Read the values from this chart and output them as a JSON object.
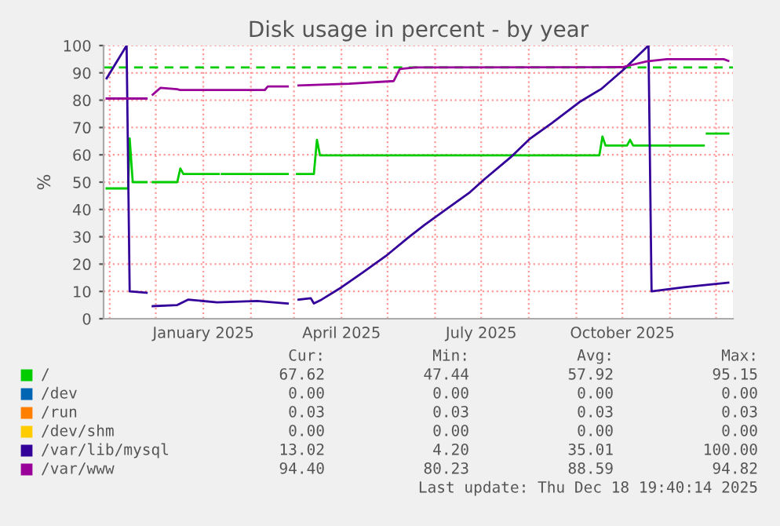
{
  "chart_data": {
    "type": "line",
    "title": "Disk usage in percent - by year",
    "ylabel": "%",
    "xlim": [
      "2024-10-28",
      "2025-12-12"
    ],
    "ylim": [
      0,
      100
    ],
    "yticks": [
      0,
      10,
      20,
      30,
      40,
      50,
      60,
      70,
      80,
      90,
      100
    ],
    "xticks": [
      {
        "value": "2024-11-01",
        "label": null
      },
      {
        "value": "2024-12-01",
        "label": null
      },
      {
        "value": "2025-01-01",
        "label": "January 2025"
      },
      {
        "value": "2025-02-01",
        "label": null
      },
      {
        "value": "2025-03-01",
        "label": null
      },
      {
        "value": "2025-04-01",
        "label": "April 2025"
      },
      {
        "value": "2025-05-01",
        "label": null
      },
      {
        "value": "2025-06-01",
        "label": null
      },
      {
        "value": "2025-07-01",
        "label": "July 2025"
      },
      {
        "value": "2025-08-01",
        "label": null
      },
      {
        "value": "2025-09-01",
        "label": null
      },
      {
        "value": "2025-10-01",
        "label": "October 2025"
      },
      {
        "value": "2025-11-01",
        "label": null
      },
      {
        "value": "2025-12-01",
        "label": null
      }
    ],
    "grid": true,
    "legend": "bottom",
    "marker": "none",
    "line_style": "solid",
    "ref_lines": [
      {
        "axis": "y",
        "value": 92,
        "label": null,
        "color": "#00cc00",
        "line_style": "dashed"
      }
    ],
    "series": [
      {
        "name": "/",
        "color": "#00cc00",
        "x": [
          "2024-10-30",
          "2024-11-13",
          "2024-11-14",
          "2024-11-16",
          "2024-11-25",
          "2024-11-27",
          "2024-11-29",
          "2024-12-15",
          "2024-12-17",
          "2024-12-19",
          "2025-01-11",
          "2025-01-12",
          "2025-01-13",
          "2025-02-25",
          "2025-02-28",
          "2025-03-03",
          "2025-03-14",
          "2025-03-16",
          "2025-03-18",
          "2025-09-16",
          "2025-09-18",
          "2025-09-20",
          "2025-10-04",
          "2025-10-06",
          "2025-10-08",
          "2025-11-23",
          "2025-11-24",
          "2025-11-25",
          "2025-12-09"
        ],
        "values": [
          47.7,
          47.7,
          66,
          50,
          50,
          null,
          50,
          50,
          55,
          53,
          53,
          null,
          53,
          53,
          null,
          53,
          53,
          65.5,
          59.8,
          59.8,
          66.7,
          63.4,
          63.4,
          65.5,
          63.4,
          63.4,
          null,
          67.8,
          67.8
        ]
      },
      {
        "name": "/dev",
        "color": "#0066b3"
      },
      {
        "name": "/run",
        "color": "#ff8000"
      },
      {
        "name": "/dev/shm",
        "color": "#ffcc00"
      },
      {
        "name": "/var/lib/mysql",
        "color": "#330099",
        "x": [
          "2024-10-30",
          "2024-11-12",
          "2024-11-14",
          "2024-11-25",
          "2024-11-27",
          "2024-11-29",
          "2024-12-15",
          "2024-12-22",
          "2025-01-10",
          "2025-02-05",
          "2025-02-25",
          "2025-02-28",
          "2025-03-04",
          "2025-03-12",
          "2025-03-14",
          "2025-03-19",
          "2025-04-01",
          "2025-04-15",
          "2025-04-30",
          "2025-05-14",
          "2025-05-25",
          "2025-06-08",
          "2025-06-23",
          "2025-07-03",
          "2025-07-20",
          "2025-08-02",
          "2025-08-16",
          "2025-09-03",
          "2025-09-17",
          "2025-10-01",
          "2025-10-18",
          "2025-10-20",
          "2025-11-10",
          "2025-12-09"
        ],
        "values": [
          88,
          100,
          10,
          9.5,
          null,
          4.6,
          5,
          7,
          6,
          6.5,
          5.6,
          null,
          7,
          7.5,
          5.6,
          7,
          11.5,
          17,
          23,
          29.5,
          34.3,
          40,
          46,
          51,
          59,
          66,
          71.6,
          79.3,
          84,
          90.8,
          100,
          10,
          11.5,
          13.2
        ]
      },
      {
        "name": "/var/www",
        "color": "#990099",
        "x": [
          "2024-10-30",
          "2024-11-25",
          "2024-11-27",
          "2024-11-29",
          "2024-12-04",
          "2024-12-15",
          "2024-12-17",
          "2025-02-10",
          "2025-02-12",
          "2025-02-25",
          "2025-02-28",
          "2025-03-04",
          "2025-04-06",
          "2025-05-05",
          "2025-05-09",
          "2025-05-19",
          "2025-10-01",
          "2025-10-17",
          "2025-10-30",
          "2025-12-06",
          "2025-12-09"
        ],
        "values": [
          80.6,
          80.6,
          null,
          82,
          84.5,
          84,
          83.7,
          83.7,
          85,
          85,
          null,
          85.4,
          86,
          87,
          91.4,
          92,
          92.1,
          94.2,
          95,
          95,
          94.4
        ]
      }
    ],
    "annotations": [
      "Cur:",
      "Min:",
      "Avg:",
      "Max:",
      "67.62",
      "47.44",
      "57.92",
      "95.15",
      "0.00",
      "0.00",
      "0.00",
      "0.00",
      "0.03",
      "0.03",
      "0.03",
      "0.03",
      "0.00",
      "0.00",
      "0.00",
      "0.00",
      "13.02",
      "4.20",
      "35.01",
      "100.00",
      "94.40",
      "80.23",
      "88.59",
      "94.82",
      "Last update: Thu Dec 18 19:40:14 2025"
    ]
  }
}
